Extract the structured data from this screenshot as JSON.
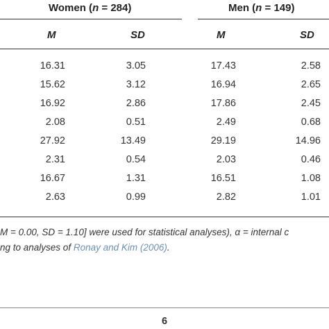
{
  "table": {
    "groups": [
      {
        "label_pre": "Women (",
        "n_symbol": "n",
        "label_post": " = 284)"
      },
      {
        "label_pre": "Men (",
        "n_symbol": "n",
        "label_post": " = 149)"
      }
    ],
    "col_headers": [
      "M",
      "SD",
      "M",
      "SD"
    ],
    "rows": [
      [
        "16.31",
        "3.05",
        "17.43",
        "2.58"
      ],
      [
        "15.62",
        "3.12",
        "16.94",
        "2.65"
      ],
      [
        "16.92",
        "2.86",
        "17.86",
        "2.45"
      ],
      [
        "2.08",
        "0.51",
        "2.49",
        "0.68"
      ],
      [
        "27.92",
        "13.49",
        "29.19",
        "14.96"
      ],
      [
        "2.31",
        "0.54",
        "2.03",
        "0.46"
      ],
      [
        "16.67",
        "1.31",
        "16.51",
        "1.08"
      ],
      [
        "2.63",
        "0.99",
        "2.82",
        "1.01"
      ]
    ]
  },
  "notes": {
    "line1": "M = 0.00, SD = 1.10] were used for statistical analyses), α = internal c",
    "line2_pre": "ng to analyses of ",
    "line2_cite": "Ronay and Kim (2006)",
    "line2_post": "."
  },
  "page_number": "6"
}
